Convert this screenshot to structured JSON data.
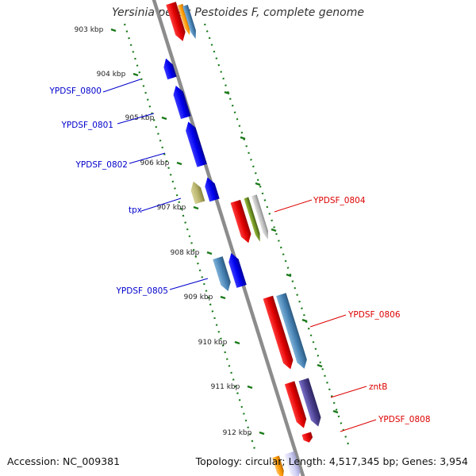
{
  "title": "Yersinia pestis Pestoides F, complete genome",
  "footer": {
    "accession": "Accession: NC_009381",
    "summary": "Topology: circular; Length: 4,517,345 bp; Genes: 3,954"
  },
  "colors": {
    "backbone": "#8a8a8a",
    "tick": "#1a7a1a",
    "forward_label": "#0000cc",
    "reverse_label": "#dd0000"
  },
  "ticks": [
    "903 kbp",
    "904 kbp",
    "905 kbp",
    "906 kbp",
    "907 kbp",
    "908 kbp",
    "909 kbp",
    "910 kbp",
    "911 kbp",
    "912 kbp"
  ],
  "forward_labels": [
    "YPDSF_0800",
    "YPDSF_0801",
    "YPDSF_0802",
    "tpx",
    "YPDSF_0805"
  ],
  "reverse_labels": [
    "YPDSF_0804",
    "YPDSF_0806",
    "zntB",
    "YPDSF_0808"
  ]
}
